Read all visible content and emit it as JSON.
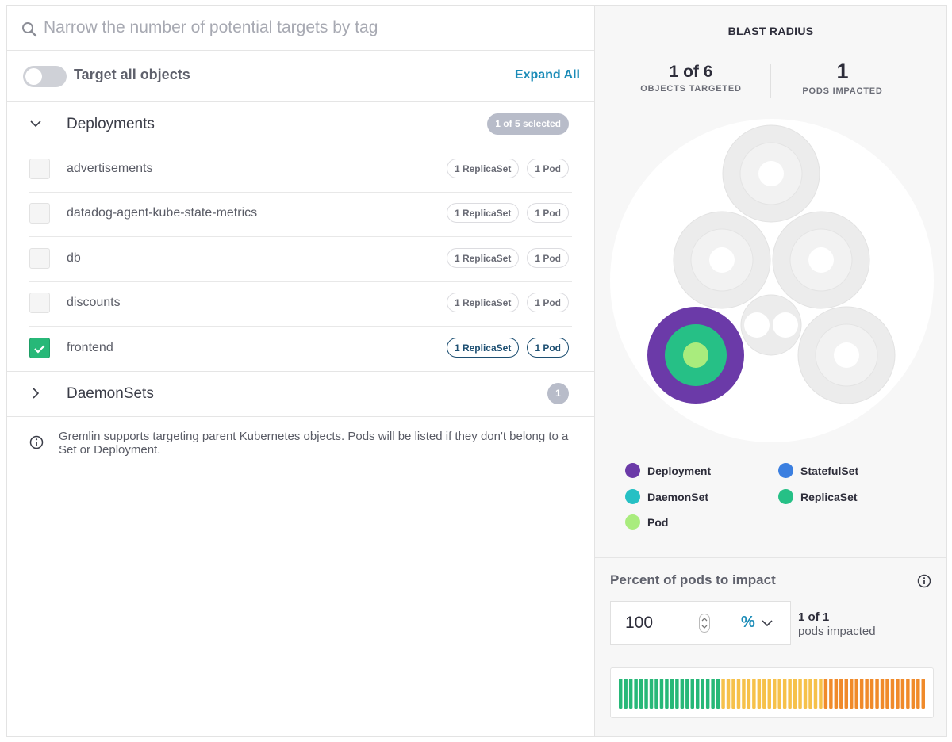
{
  "search": {
    "placeholder": "Narrow the number of potential targets by tag",
    "value": ""
  },
  "toggle": {
    "label": "Target all objects",
    "on": false
  },
  "expand_all": "Expand All",
  "groups": [
    {
      "title": "Deployments",
      "expanded": true,
      "badge": "1 of 5 selected",
      "items": [
        {
          "name": "advertisements",
          "replicasets": "1 ReplicaSet",
          "pods": "1 Pod",
          "checked": false
        },
        {
          "name": "datadog-agent-kube-state-metrics",
          "replicasets": "1 ReplicaSet",
          "pods": "1 Pod",
          "checked": false
        },
        {
          "name": "db",
          "replicasets": "1 ReplicaSet",
          "pods": "1 Pod",
          "checked": false
        },
        {
          "name": "discounts",
          "replicasets": "1 ReplicaSet",
          "pods": "1 Pod",
          "checked": false
        },
        {
          "name": "frontend",
          "replicasets": "1 ReplicaSet",
          "pods": "1 Pod",
          "checked": true
        }
      ]
    },
    {
      "title": "DaemonSets",
      "expanded": false,
      "badge": "1"
    }
  ],
  "info_note": "Gremlin supports targeting parent Kubernetes objects. Pods will be listed if they don't belong to a Set or Deployment.",
  "blast_radius": {
    "title": "BLAST RADIUS",
    "objects_targeted": {
      "value": "1 of 6",
      "label": "OBJECTS TARGETED"
    },
    "pods_impacted": {
      "value": "1",
      "label": "PODS IMPACTED"
    }
  },
  "legend": [
    {
      "label": "Deployment",
      "color": "#6b3aa8"
    },
    {
      "label": "StatefulSet",
      "color": "#3b7fe0"
    },
    {
      "label": "DaemonSet",
      "color": "#26c0c4"
    },
    {
      "label": "ReplicaSet",
      "color": "#26c086"
    },
    {
      "label": "Pod",
      "color": "#a9ec7d"
    }
  ],
  "percent": {
    "label": "Percent of pods to impact",
    "value": "100",
    "unit": "%",
    "summary_count": "1 of 1",
    "summary_label": "pods impacted"
  },
  "colors": {
    "accent": "#1a8bb7",
    "checked": "#27b878",
    "meter_green": "#27b878",
    "meter_yellow": "#f6c14a",
    "meter_orange": "#f08a2a"
  }
}
